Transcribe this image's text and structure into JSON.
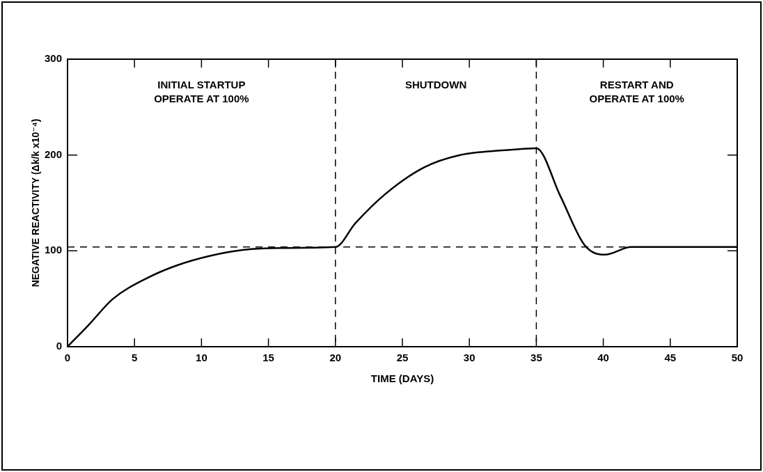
{
  "chart_data": {
    "type": "line",
    "xlabel": "TIME (DAYS)",
    "ylabel": "NEGATIVE REACTIVITY (Δk/k x10⁻⁴)",
    "series": [
      {
        "color": "#000000",
        "x": [
          0,
          1.6,
          3.4,
          6,
          8.2,
          10.7,
          13.1,
          16,
          20,
          21.5,
          23.7,
          26.6,
          29.3,
          32.6,
          35,
          36.8,
          38.6,
          40.1,
          42.1,
          50
        ],
        "values": [
          0,
          23,
          50,
          72,
          85,
          95,
          101,
          103,
          104,
          129,
          159,
          187,
          200,
          205,
          207,
          157,
          106,
          96,
          104,
          104
        ]
      }
    ],
    "xlim": [
      0,
      50
    ],
    "xticks": [
      0,
      5,
      10,
      15,
      20,
      25,
      30,
      35,
      40,
      45,
      50
    ],
    "ylim": [
      0,
      300
    ],
    "yticks": [
      0,
      100,
      200,
      300
    ],
    "ref_lines": [
      {
        "axis": "x",
        "value": 20,
        "line_style": "dashed"
      },
      {
        "axis": "x",
        "value": 35,
        "line_style": "dashed"
      },
      {
        "axis": "y",
        "value": 104,
        "line_style": "dashed"
      }
    ],
    "annotations": [
      "INITIAL STARTUP\nOPERATE AT 100%",
      "SHUTDOWN",
      "RESTART AND\nOPERATE AT 100%"
    ],
    "grid": false,
    "legend": false,
    "marker": "none",
    "line_style": "solid"
  }
}
